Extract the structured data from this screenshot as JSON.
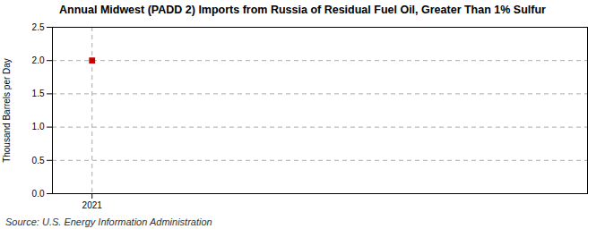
{
  "chart_data": {
    "type": "scatter",
    "title": "Annual Midwest (PADD 2) Imports from Russia of Residual Fuel Oil, Greater Than 1% Sulfur",
    "ylabel": "Thousand Barrels per Day",
    "source": "Source: U.S. Energy Information Administration",
    "x": [
      2021
    ],
    "values": [
      2.0
    ],
    "color": "#cc0000",
    "marker": "square",
    "xlim": [
      2020.6,
      2026.0
    ],
    "xticks": [
      2021
    ],
    "ylim": [
      0,
      2.5
    ],
    "yticks": [
      {
        "value": 0,
        "label": "0.0"
      },
      0.5,
      {
        "value": 1,
        "label": "1.0"
      },
      1.5,
      {
        "value": 2,
        "label": "2.0"
      },
      2.5
    ],
    "grid": true
  }
}
